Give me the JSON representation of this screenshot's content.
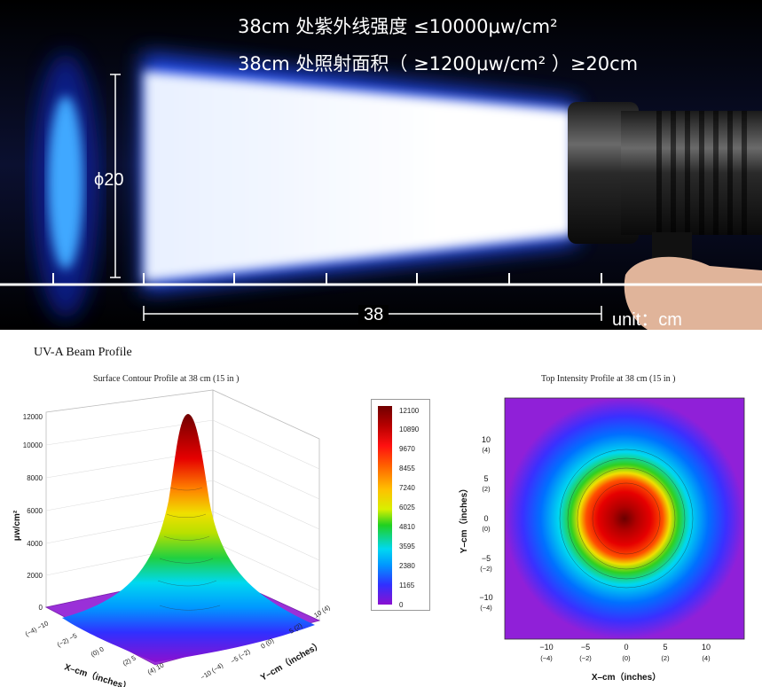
{
  "hero": {
    "line1": "38cm 处紫外线强度 ≤10000μw/cm²",
    "line2": "38cm 处照射面积（ ≥1200μw/cm² ）≥20cm",
    "diameter_label": "ϕ20",
    "distance_label": "38",
    "unit_label": "unit：cm"
  },
  "profile": {
    "title": "UV-A Beam Profile",
    "surface_title": "Surface Contour Profile at 38 cm (15 in )",
    "top_title": "Top Intensity Profile at 38 cm (15 in )",
    "z_axis_label": "μw/cm²",
    "x_axis_label": "X–cm（inches）",
    "y_axis_label": "Y–cm（inches）",
    "z_ticks": [
      "0",
      "2000",
      "4000",
      "6000",
      "8000",
      "10000",
      "12000"
    ],
    "x_ticks_3d": [
      "(−4) −10",
      "(−2) −5",
      "(0) 0",
      "(2) 5",
      "(4) 10"
    ],
    "y_ticks_3d": [
      "−10 (−4)",
      "−5 (−2)",
      "0 (0)",
      "5 (2)",
      "10 (4)"
    ],
    "colorbar_values": [
      "12100",
      "10890",
      "9670",
      "8455",
      "7240",
      "6025",
      "4810",
      "3595",
      "2380",
      "1165",
      "0"
    ],
    "top_ticks": [
      "−10",
      "−5",
      "0",
      "5",
      "10"
    ],
    "top_ticks_in": [
      "(−4)",
      "(−2)",
      "(0)",
      "(2)",
      "(4)"
    ],
    "top_y_ticks": [
      "10",
      "5",
      "0",
      "−5",
      "−10"
    ],
    "top_y_ticks_in": [
      "(4)",
      "(2)",
      "(0)",
      "(−2)",
      "(−4)"
    ],
    "top_x_label": "X–cm（inches）",
    "top_y_label": "Y–cm（inches）",
    "colors": {
      "peak": "#6b0000",
      "red": "#e60000",
      "yellow": "#f0e000",
      "green": "#20d020",
      "cyan": "#00d8f0",
      "blue": "#0050ff",
      "purple": "#8a10d0"
    }
  }
}
